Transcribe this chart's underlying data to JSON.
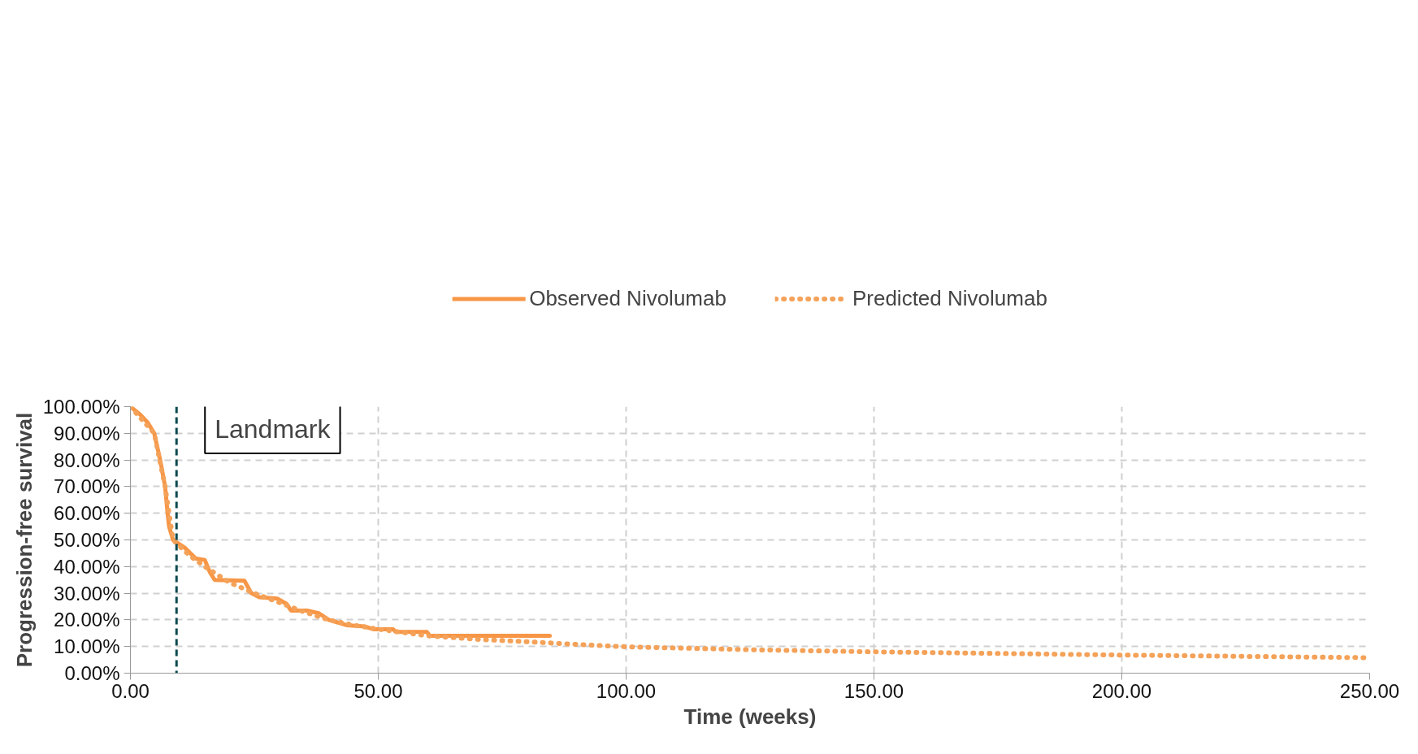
{
  "chart_data": {
    "type": "line",
    "xlabel": "Time (weeks)",
    "ylabel": "Progression-free survival",
    "xlim": [
      0,
      250
    ],
    "ylim": [
      0,
      100
    ],
    "xticks": [
      {
        "value": 0,
        "label": "0.00"
      },
      {
        "value": 50,
        "label": "50.00"
      },
      {
        "value": 100,
        "label": "100.00"
      },
      {
        "value": 150,
        "label": "150.00"
      },
      {
        "value": 200,
        "label": "200.00"
      },
      {
        "value": 250,
        "label": "250.00"
      }
    ],
    "yticks": [
      {
        "value": 0,
        "label": "0.00%"
      },
      {
        "value": 10,
        "label": "10.00%"
      },
      {
        "value": 20,
        "label": "20.00%"
      },
      {
        "value": 30,
        "label": "30.00%"
      },
      {
        "value": 40,
        "label": "40.00%"
      },
      {
        "value": 50,
        "label": "50.00%"
      },
      {
        "value": 60,
        "label": "60.00%"
      },
      {
        "value": 70,
        "label": "70.00%"
      },
      {
        "value": 80,
        "label": "80.00%"
      },
      {
        "value": 90,
        "label": "90.00%"
      },
      {
        "value": 100,
        "label": "100.00%"
      }
    ],
    "grid": true,
    "legend": "top",
    "marker": "none",
    "series": [
      {
        "name": "Observed Nivolumab",
        "color": "#f79646",
        "line_style": "solid",
        "x": [
          0,
          2,
          3.5,
          4.8,
          6,
          7,
          7.5,
          7.8,
          8.6,
          11,
          13.2,
          15,
          16,
          17,
          23,
          24.4,
          26,
          29.6,
          31.5,
          32.4,
          35.6,
          38,
          40,
          43.6,
          47.3,
          49,
          53,
          53.5,
          59.8,
          60.4,
          84.6
        ],
        "values": [
          100,
          97,
          94,
          90,
          80,
          70,
          60,
          55,
          50,
          47,
          43,
          42.5,
          38,
          35,
          34.7,
          30,
          28.5,
          28,
          26,
          23.5,
          23.5,
          22.5,
          20,
          18,
          17.5,
          16.5,
          16.5,
          15.5,
          15.5,
          14,
          14
        ]
      },
      {
        "name": "Predicted Nivolumab",
        "color": "#f4a259",
        "line_style": "dotted",
        "x": [
          0,
          4.8,
          7,
          8.6,
          12,
          15,
          20,
          25,
          30,
          35,
          40,
          45,
          50,
          60,
          70,
          80,
          90,
          100,
          125,
          150,
          175,
          200,
          225,
          250
        ],
        "values": [
          100,
          90,
          70,
          50,
          44,
          40,
          34,
          30,
          26.5,
          23,
          20,
          18,
          16.5,
          14,
          12.7,
          11.8,
          10.8,
          9.9,
          8.8,
          8,
          7.4,
          6.8,
          6.3,
          5.8
        ]
      }
    ],
    "ref_lines": [
      {
        "axis": "x",
        "value": 9.3,
        "label": "Landmark",
        "color": "#0b4a4f",
        "line_style": "dashed"
      }
    ]
  }
}
